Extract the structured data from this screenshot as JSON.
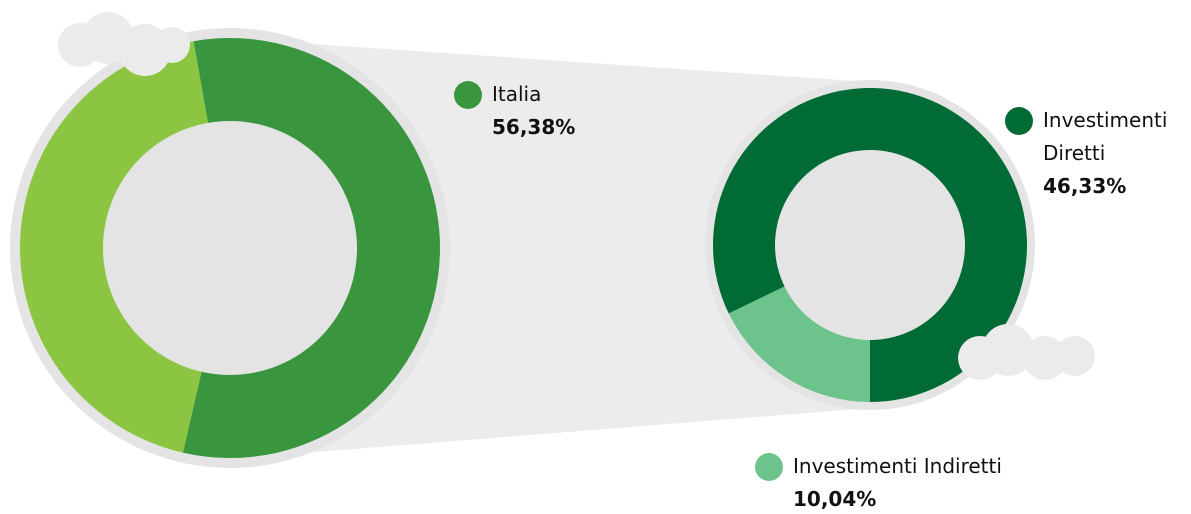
{
  "chart_data": [
    {
      "type": "donut",
      "categories": [
        "Italia",
        null
      ],
      "values": [
        56.38,
        43.62
      ],
      "value_labels": [
        "56,38%",
        null
      ],
      "colors": [
        "#3a963e",
        "#8cc542"
      ]
    },
    {
      "type": "donut",
      "categories": [
        "Investimenti Diretti",
        "Investimenti Indiretti"
      ],
      "values": [
        46.33,
        10.04
      ],
      "value_labels": [
        "46,33%",
        "10,04%"
      ],
      "colors": [
        "#006b35",
        "#6cc38b"
      ]
    }
  ]
}
